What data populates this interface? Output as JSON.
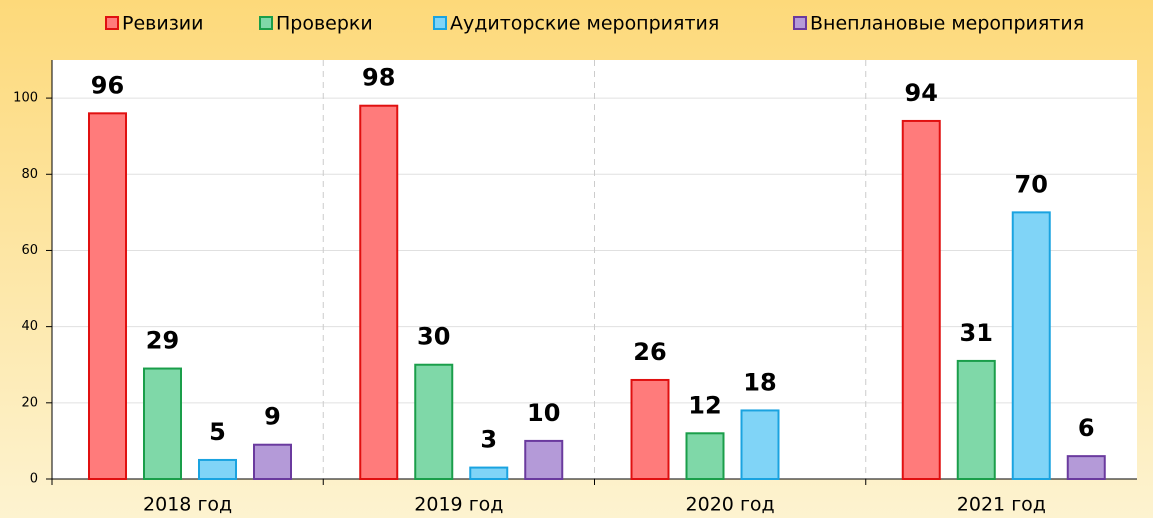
{
  "chart_data": {
    "type": "bar",
    "categories": [
      "2018 год",
      "2019 год",
      "2020 год",
      "2021 год"
    ],
    "series": [
      {
        "name": "Ревизии",
        "color": "#ff7b7b",
        "stroke": "#e01010",
        "values": [
          96,
          98,
          26,
          94
        ]
      },
      {
        "name": "Проверки",
        "color": "#7fd8a8",
        "stroke": "#1a9e4a",
        "values": [
          29,
          30,
          12,
          31
        ]
      },
      {
        "name": "Аудиторские мероприятия",
        "color": "#80d4f7",
        "stroke": "#1aa3e0",
        "values": [
          5,
          3,
          18,
          70
        ]
      },
      {
        "name": "Внеплановые мероприятия",
        "color": "#b49ad8",
        "stroke": "#6a3a9e",
        "values": [
          9,
          10,
          null,
          6
        ]
      }
    ],
    "ylim": [
      0,
      110
    ],
    "yticks": [
      0,
      20,
      40,
      60,
      80,
      100
    ],
    "grid": true,
    "legend": "top"
  }
}
